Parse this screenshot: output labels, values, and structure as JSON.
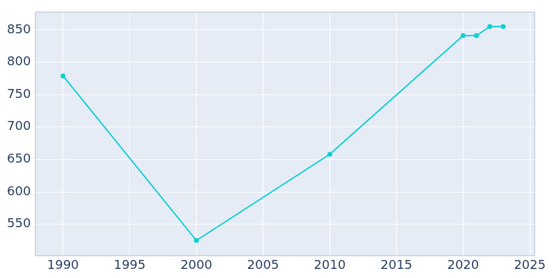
{
  "chart_data": {
    "type": "line",
    "x": [
      1990,
      2000,
      2010,
      2020,
      2021,
      2022,
      2023
    ],
    "values": [
      779,
      525,
      658,
      841,
      841,
      855,
      855
    ],
    "color": "#0fcfcf",
    "marker": "circle",
    "xlim": [
      1987.9,
      2025.4
    ],
    "ylim": [
      501,
      878
    ],
    "xticks": [
      1990,
      1995,
      2000,
      2005,
      2010,
      2015,
      2020,
      2025
    ],
    "yticks": [
      550,
      600,
      650,
      700,
      750,
      800,
      850
    ],
    "grid": true
  }
}
